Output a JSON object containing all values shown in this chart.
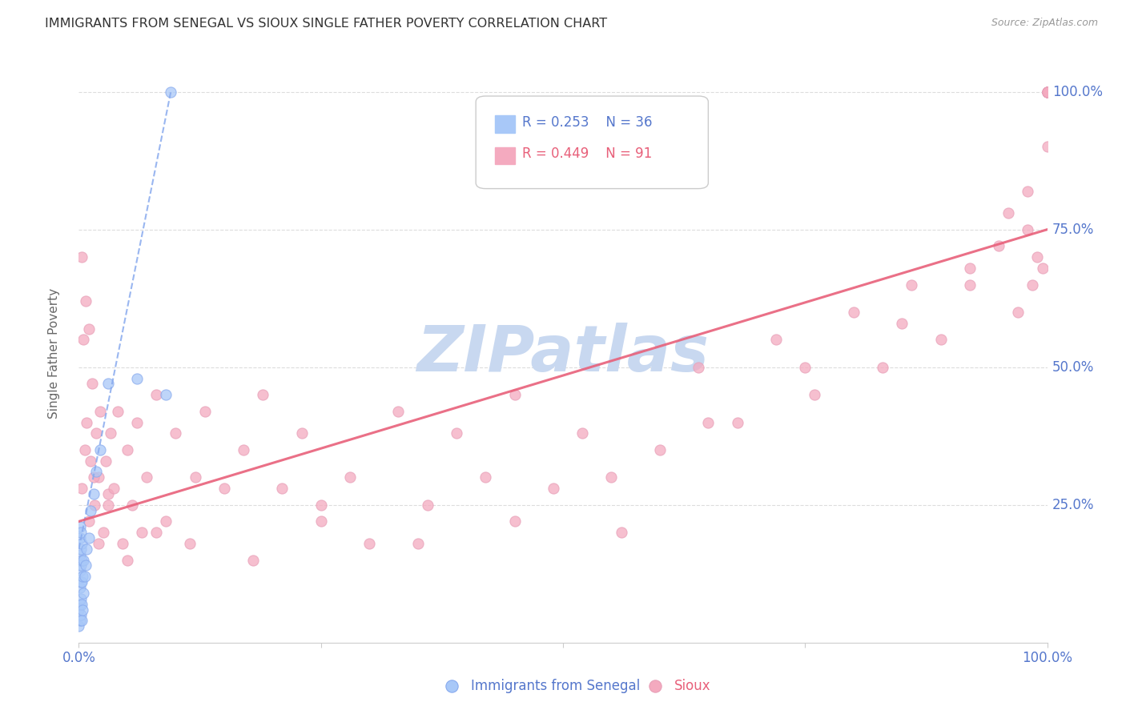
{
  "title": "IMMIGRANTS FROM SENEGAL VS SIOUX SINGLE FATHER POVERTY CORRELATION CHART",
  "source": "Source: ZipAtlas.com",
  "ylabel": "Single Father Poverty",
  "legend_blue_r": "R = 0.253",
  "legend_blue_n": "N = 36",
  "legend_pink_r": "R = 0.449",
  "legend_pink_n": "N = 91",
  "blue_color": "#A8C8F8",
  "pink_color": "#F4AABF",
  "blue_line_color": "#88AAEE",
  "pink_line_color": "#E8607A",
  "blue_edge_color": "#88AAEE",
  "pink_edge_color": "#E8A0B8",
  "watermark_color": "#C8D8F0",
  "axis_label_color": "#5577CC",
  "title_color": "#333333",
  "source_color": "#999999",
  "ylabel_color": "#666666",
  "grid_color": "#DDDDDD",
  "background_color": "#FFFFFF",
  "blue_scatter_x": [
    0.0,
    0.0,
    0.001,
    0.001,
    0.001,
    0.001,
    0.001,
    0.001,
    0.001,
    0.002,
    0.002,
    0.002,
    0.002,
    0.002,
    0.002,
    0.003,
    0.003,
    0.003,
    0.003,
    0.003,
    0.004,
    0.004,
    0.005,
    0.005,
    0.006,
    0.007,
    0.008,
    0.01,
    0.012,
    0.015,
    0.018,
    0.022,
    0.03,
    0.06,
    0.09,
    0.095
  ],
  "blue_scatter_y": [
    0.03,
    0.06,
    0.04,
    0.07,
    0.1,
    0.13,
    0.16,
    0.19,
    0.21,
    0.05,
    0.08,
    0.11,
    0.14,
    0.17,
    0.2,
    0.04,
    0.07,
    0.11,
    0.15,
    0.18,
    0.06,
    0.12,
    0.09,
    0.15,
    0.12,
    0.14,
    0.17,
    0.19,
    0.24,
    0.27,
    0.31,
    0.35,
    0.47,
    0.48,
    0.45,
    1.0
  ],
  "pink_scatter_x": [
    0.003,
    0.005,
    0.007,
    0.008,
    0.01,
    0.012,
    0.014,
    0.016,
    0.018,
    0.02,
    0.022,
    0.025,
    0.028,
    0.03,
    0.033,
    0.036,
    0.04,
    0.045,
    0.05,
    0.055,
    0.06,
    0.065,
    0.07,
    0.08,
    0.09,
    0.1,
    0.115,
    0.13,
    0.15,
    0.17,
    0.19,
    0.21,
    0.23,
    0.25,
    0.28,
    0.3,
    0.33,
    0.36,
    0.39,
    0.42,
    0.45,
    0.49,
    0.52,
    0.56,
    0.6,
    0.64,
    0.68,
    0.72,
    0.76,
    0.8,
    0.83,
    0.86,
    0.89,
    0.92,
    0.95,
    0.97,
    0.98,
    0.985,
    0.99,
    0.995,
    1.0,
    1.0,
    1.0,
    1.0,
    1.0,
    1.0,
    1.0,
    1.0,
    1.0,
    1.0,
    0.003,
    0.006,
    0.01,
    0.015,
    0.02,
    0.03,
    0.05,
    0.08,
    0.12,
    0.18,
    0.25,
    0.35,
    0.45,
    0.55,
    0.65,
    0.75,
    0.85,
    0.92,
    0.96,
    0.98,
    1.0
  ],
  "pink_scatter_y": [
    0.7,
    0.55,
    0.62,
    0.4,
    0.57,
    0.33,
    0.47,
    0.25,
    0.38,
    0.3,
    0.42,
    0.2,
    0.33,
    0.27,
    0.38,
    0.28,
    0.42,
    0.18,
    0.35,
    0.25,
    0.4,
    0.2,
    0.3,
    0.45,
    0.22,
    0.38,
    0.18,
    0.42,
    0.28,
    0.35,
    0.45,
    0.28,
    0.38,
    0.22,
    0.3,
    0.18,
    0.42,
    0.25,
    0.38,
    0.3,
    0.45,
    0.28,
    0.38,
    0.2,
    0.35,
    0.5,
    0.4,
    0.55,
    0.45,
    0.6,
    0.5,
    0.65,
    0.55,
    0.68,
    0.72,
    0.6,
    0.75,
    0.65,
    0.7,
    0.68,
    1.0,
    1.0,
    1.0,
    1.0,
    1.0,
    1.0,
    1.0,
    1.0,
    1.0,
    1.0,
    0.28,
    0.35,
    0.22,
    0.3,
    0.18,
    0.25,
    0.15,
    0.2,
    0.3,
    0.15,
    0.25,
    0.18,
    0.22,
    0.3,
    0.4,
    0.5,
    0.58,
    0.65,
    0.78,
    0.82,
    0.9
  ],
  "blue_line_x": [
    0.0,
    0.095
  ],
  "blue_line_y": [
    0.17,
    1.0
  ],
  "pink_line_x": [
    0.0,
    1.0
  ],
  "pink_line_y": [
    0.22,
    0.75
  ],
  "xlim": [
    0.0,
    1.0
  ],
  "ylim": [
    0.0,
    1.05
  ]
}
